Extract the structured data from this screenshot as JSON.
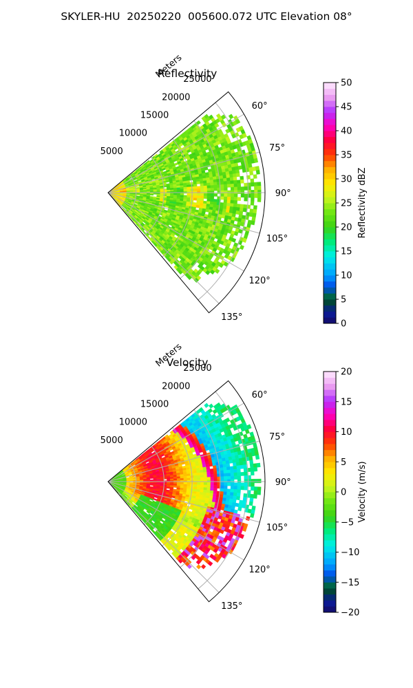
{
  "figure_title": "SKYLER-HU  20250220  005600.072 UTC Elevation 08°",
  "chart_data": [
    {
      "type": "heatmap",
      "subtype": "polar-sector",
      "title": "Reflectivity",
      "radial_axis_label": "Meters",
      "radial_ticks": [
        5000,
        10000,
        15000,
        20000,
        25000
      ],
      "radial_tick_labels": [
        "5000",
        "10000",
        "15000",
        "20000",
        "25000"
      ],
      "radial_max": 28000,
      "azimuth_range_deg": [
        50,
        140
      ],
      "azimuth_ticks": [
        60,
        75,
        90,
        105,
        120,
        135
      ],
      "azimuth_tick_labels": [
        "60°",
        "75°",
        "90°",
        "105°",
        "120°",
        "135°"
      ],
      "grid": true,
      "colorbar": {
        "label": "Reflectivity dBZ",
        "min": 0,
        "max": 50,
        "ticks": [
          0,
          5,
          10,
          15,
          20,
          25,
          30,
          35,
          40,
          45,
          50
        ],
        "tick_labels": [
          "0",
          "5",
          "10",
          "15",
          "20",
          "25",
          "30",
          "35",
          "40",
          "45",
          "50"
        ]
      },
      "field_description": "Mostly 20–25 dBZ across sector; 28–33 dBZ near radar and in patches along 90–100°",
      "near_range_max_km": 3.5,
      "typical_value": 23,
      "data_extent_m_by_azimuth": [
        [
          52,
          22000
        ],
        [
          60,
          26500
        ],
        [
          75,
          27000
        ],
        [
          90,
          27000
        ],
        [
          105,
          26000
        ],
        [
          120,
          25000
        ],
        [
          135,
          22000
        ],
        [
          139,
          18000
        ]
      ]
    },
    {
      "type": "heatmap",
      "subtype": "polar-sector",
      "title": "Velocity",
      "radial_axis_label": "Meters",
      "radial_ticks": [
        5000,
        10000,
        15000,
        20000,
        25000
      ],
      "radial_tick_labels": [
        "5000",
        "10000",
        "15000",
        "20000",
        "25000"
      ],
      "radial_max": 28000,
      "azimuth_range_deg": [
        50,
        140
      ],
      "azimuth_ticks": [
        60,
        75,
        90,
        105,
        120,
        135
      ],
      "azimuth_tick_labels": [
        "60°",
        "75°",
        "90°",
        "105°",
        "120°",
        "135°"
      ],
      "grid": true,
      "colorbar": {
        "label": "Velocity (m/s)",
        "min": -20,
        "max": 20,
        "ticks": [
          -20,
          -15,
          -10,
          -5,
          0,
          5,
          10,
          15,
          20
        ],
        "tick_labels": [
          "−20",
          "−15",
          "−10",
          "−5",
          "0",
          "5",
          "10",
          "15",
          "20"
        ]
      },
      "field_description": "Near radar about −3 m/s (green), ring of +5 to +12 m/s (orange/red) at 5–14 km, folded to purple/cyan (−12 m/s) beyond ~15–20 km on north side, green/yellow south side",
      "data_extent_m_by_azimuth": [
        [
          52,
          22000
        ],
        [
          60,
          26500
        ],
        [
          75,
          27000
        ],
        [
          90,
          27000
        ],
        [
          105,
          26000
        ],
        [
          120,
          25000
        ],
        [
          135,
          22000
        ],
        [
          139,
          18000
        ]
      ]
    }
  ]
}
